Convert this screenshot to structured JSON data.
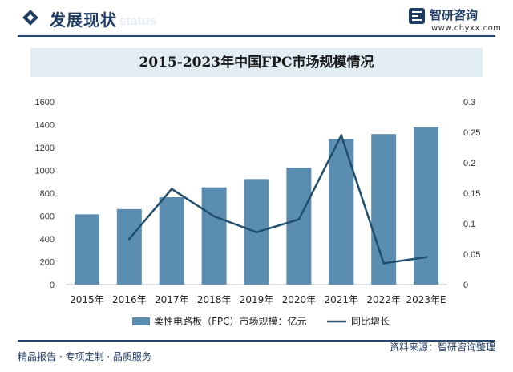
{
  "header": {
    "title": "发展现状",
    "watermark": "ent status"
  },
  "brand": {
    "name": "智研咨询",
    "site": "www.chyxx.com"
  },
  "footer": {
    "left": "精品报告 · 专项定制 · 品质服务",
    "source": "资料来源：智研咨询整理"
  },
  "colors": {
    "bar": "#5b8db0",
    "line": "#1f4e6e",
    "header_rule": "#23466e",
    "title_band": "#e1ecf3"
  },
  "chart_data": {
    "type": "bar",
    "title": "2015-2023年中国FPC市场规模情况",
    "categories": [
      "2015年",
      "2016年",
      "2017年",
      "2018年",
      "2019年",
      "2020年",
      "2021年",
      "2022年",
      "2023年E"
    ],
    "series": [
      {
        "name": "柔性电路板（FPC）市场规模：亿元",
        "type": "bar",
        "axis": "left",
        "values": [
          615,
          661,
          765,
          851,
          924,
          1023,
          1274,
          1318,
          1377
        ]
      },
      {
        "name": "同比增长",
        "type": "line",
        "axis": "right",
        "values": [
          null,
          0.075,
          0.157,
          0.112,
          0.086,
          0.107,
          0.245,
          0.035,
          0.045
        ]
      }
    ],
    "y_left": {
      "min": 0,
      "max": 1600,
      "ticks": [
        0,
        200,
        400,
        600,
        800,
        1000,
        1200,
        1400,
        1600
      ]
    },
    "y_right": {
      "min": 0,
      "max": 0.3,
      "ticks": [
        "0",
        "0.05",
        "0.1",
        "0.15",
        "0.2",
        "0.25",
        "0.3"
      ]
    },
    "legend_position": "bottom"
  }
}
